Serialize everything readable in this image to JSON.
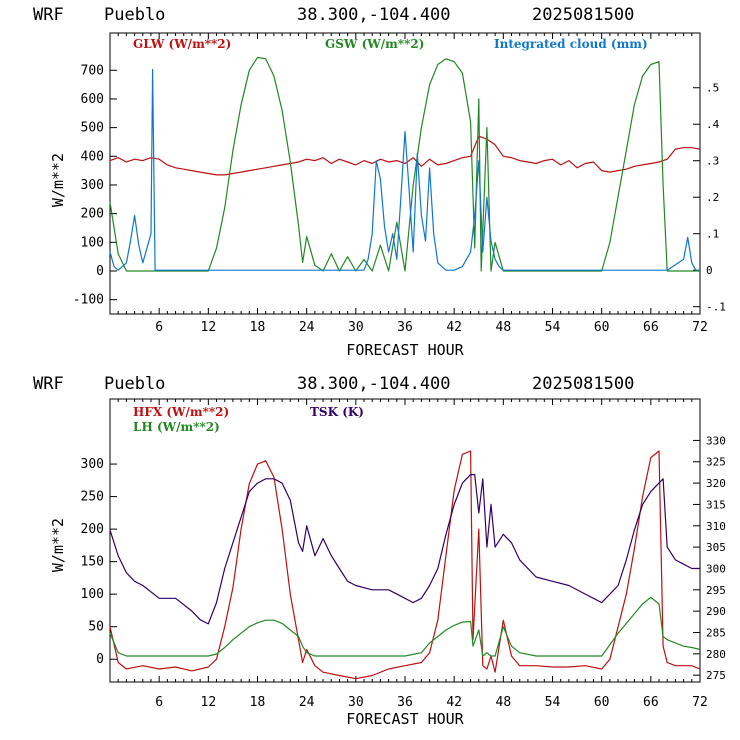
{
  "chart_data": [
    {
      "type": "line",
      "header": {
        "model": "WRF",
        "site": "Pueblo",
        "coords": "38.300,-104.400",
        "run": "2025081500"
      },
      "xlabel": "FORECAST HOUR",
      "ylabel": "W/m**2",
      "xlim": [
        0,
        72
      ],
      "ylim": [
        -150,
        830
      ],
      "y2lim": [
        -0.12,
        0.65
      ],
      "x_ticks": [
        6,
        12,
        18,
        24,
        30,
        36,
        42,
        48,
        54,
        60,
        66,
        72
      ],
      "y_ticks": [
        -100,
        0,
        100,
        200,
        300,
        400,
        500,
        600,
        700
      ],
      "y2_ticks": [
        {
          "v": -0.1,
          "label": "-.1"
        },
        {
          "v": 0,
          "label": "0"
        },
        {
          "v": 0.1,
          "label": ".1"
        },
        {
          "v": 0.2,
          "label": ".2"
        },
        {
          "v": 0.3,
          "label": ".3"
        },
        {
          "v": 0.4,
          "label": ".4"
        },
        {
          "v": 0.5,
          "label": ".5"
        }
      ],
      "series": [
        {
          "name": "GLW (W/m**2)",
          "color": "#bb1111",
          "axis": "left",
          "legend_pos": "left",
          "x": [
            0,
            1,
            2,
            3,
            4,
            5,
            6,
            7,
            8,
            9,
            10,
            11,
            12,
            13,
            14,
            15,
            16,
            17,
            18,
            19,
            20,
            21,
            22,
            23,
            24,
            25,
            26,
            27,
            28,
            29,
            30,
            31,
            32,
            33,
            34,
            35,
            36,
            37,
            38,
            39,
            40,
            41,
            42,
            43,
            44,
            45,
            46,
            47,
            48,
            49,
            50,
            51,
            52,
            53,
            54,
            55,
            56,
            57,
            58,
            59,
            60,
            61,
            62,
            63,
            64,
            65,
            66,
            67,
            68,
            69,
            70,
            71,
            72
          ],
          "values": [
            385,
            395,
            380,
            390,
            385,
            395,
            390,
            370,
            360,
            355,
            350,
            345,
            340,
            335,
            335,
            340,
            345,
            350,
            355,
            360,
            365,
            370,
            375,
            380,
            390,
            385,
            395,
            375,
            390,
            380,
            370,
            385,
            375,
            390,
            380,
            385,
            375,
            395,
            365,
            390,
            370,
            375,
            385,
            395,
            400,
            470,
            460,
            440,
            400,
            395,
            385,
            380,
            375,
            385,
            390,
            370,
            385,
            360,
            375,
            380,
            350,
            345,
            350,
            355,
            365,
            370,
            375,
            380,
            390,
            425,
            430,
            430,
            425
          ]
        },
        {
          "name": "GSW (W/m**2)",
          "color": "#228822",
          "axis": "left",
          "legend_pos": "center",
          "x": [
            0,
            0.5,
            1,
            2,
            3,
            4,
            5,
            6,
            7,
            8,
            9,
            10,
            11,
            12,
            13,
            14,
            15,
            16,
            17,
            18,
            19,
            20,
            21,
            22,
            23,
            23.5,
            24,
            25,
            26,
            27,
            28,
            29,
            30,
            31,
            32,
            33,
            34,
            35,
            36,
            37,
            38,
            39,
            40,
            41,
            42,
            43,
            44,
            44.5,
            45,
            45.3,
            46,
            46.5,
            47,
            48,
            49,
            49.5,
            50,
            51,
            52,
            54,
            56,
            58,
            60,
            61,
            62,
            63,
            64,
            65,
            66,
            67,
            67.5,
            68,
            69,
            70,
            71,
            72
          ],
          "values": [
            240,
            150,
            60,
            0,
            0,
            0,
            0,
            0,
            0,
            0,
            0,
            0,
            0,
            0,
            80,
            220,
            420,
            580,
            700,
            745,
            740,
            680,
            560,
            380,
            160,
            30,
            120,
            20,
            0,
            60,
            0,
            50,
            0,
            40,
            0,
            90,
            0,
            170,
            0,
            300,
            500,
            650,
            720,
            740,
            730,
            690,
            520,
            80,
            600,
            0,
            500,
            0,
            100,
            0,
            0,
            0,
            0,
            0,
            0,
            0,
            0,
            0,
            0,
            100,
            260,
            420,
            580,
            680,
            720,
            730,
            300,
            0,
            0,
            0,
            0,
            0
          ]
        },
        {
          "name": "Integrated cloud (mm)",
          "color": "#1177cc",
          "axis": "right",
          "legend_pos": "right",
          "x": [
            0,
            0.5,
            1,
            2,
            2.5,
            3,
            3.5,
            4,
            4.5,
            5,
            5.2,
            5.5,
            6,
            6.5,
            7,
            8,
            9,
            10,
            11,
            12,
            13,
            14,
            15,
            16,
            17,
            18,
            20,
            22,
            24,
            25,
            26,
            27,
            28,
            29,
            30,
            31,
            31.5,
            32,
            32.5,
            33,
            33.5,
            34,
            34.5,
            35,
            35.5,
            36,
            36.5,
            37,
            37.5,
            38,
            38.5,
            39,
            39.5,
            40,
            41,
            42,
            43,
            44,
            44.5,
            45,
            45.5,
            46,
            46.5,
            47,
            47.5,
            48,
            49,
            50,
            52,
            56,
            60,
            64,
            68,
            70,
            70.5,
            71,
            71.5,
            72
          ],
          "values": [
            0.05,
            0.01,
            0.0,
            0.02,
            0.08,
            0.15,
            0.07,
            0.02,
            0.06,
            0.1,
            0.55,
            0.0,
            0.0,
            0.0,
            0.0,
            0.0,
            0.0,
            0.0,
            0.0,
            0.0,
            0.0,
            0.0,
            0.0,
            0.0,
            0.0,
            0.0,
            0.0,
            0.0,
            0.0,
            0.0,
            0.0,
            0.0,
            0.0,
            0.0,
            0.0,
            0.0,
            0.03,
            0.1,
            0.3,
            0.25,
            0.12,
            0.05,
            0.1,
            0.03,
            0.2,
            0.38,
            0.22,
            0.05,
            0.32,
            0.15,
            0.08,
            0.28,
            0.1,
            0.02,
            0.0,
            0.0,
            0.01,
            0.05,
            0.15,
            0.3,
            0.05,
            0.2,
            0.08,
            0.03,
            0.01,
            0.0,
            0.0,
            0.0,
            0.0,
            0.0,
            0.0,
            0.0,
            0.0,
            0.03,
            0.09,
            0.02,
            0.0,
            0.0
          ]
        }
      ]
    },
    {
      "type": "line",
      "header": {
        "model": "WRF",
        "site": "Pueblo",
        "coords": "38.300,-104.400",
        "run": "2025081500"
      },
      "xlabel": "FORECAST HOUR",
      "ylabel": "W/m**2",
      "xlim": [
        0,
        72
      ],
      "ylim": [
        -35,
        400
      ],
      "y2lim": [
        273.4,
        339.7
      ],
      "x_ticks": [
        6,
        12,
        18,
        24,
        30,
        36,
        42,
        48,
        54,
        60,
        66,
        72
      ],
      "y_ticks": [
        0,
        50,
        100,
        150,
        200,
        250,
        300
      ],
      "y2_ticks": [
        {
          "v": 275,
          "label": "275"
        },
        {
          "v": 280,
          "label": "280"
        },
        {
          "v": 285,
          "label": "285"
        },
        {
          "v": 290,
          "label": "290"
        },
        {
          "v": 295,
          "label": "295"
        },
        {
          "v": 300,
          "label": "300"
        },
        {
          "v": 305,
          "label": "305"
        },
        {
          "v": 310,
          "label": "310"
        },
        {
          "v": 315,
          "label": "315"
        },
        {
          "v": 320,
          "label": "320"
        },
        {
          "v": 325,
          "label": "325"
        },
        {
          "v": 330,
          "label": "330"
        }
      ],
      "series": [
        {
          "name": "HFX (W/m**2)",
          "color": "#bb1111",
          "axis": "left",
          "legend_pos": "left",
          "x": [
            0,
            1,
            2,
            4,
            6,
            8,
            10,
            12,
            13,
            14,
            15,
            16,
            17,
            18,
            19,
            20,
            21,
            22,
            23,
            23.5,
            24,
            25,
            26,
            28,
            30,
            32,
            34,
            36,
            38,
            39,
            40,
            41,
            42,
            43,
            44,
            44.3,
            45,
            45.5,
            46,
            46.5,
            47,
            48,
            49,
            50,
            52,
            54,
            56,
            58,
            60,
            61,
            62,
            63,
            64,
            65,
            66,
            67,
            67.5,
            68,
            69,
            70,
            71,
            72
          ],
          "values": [
            50,
            -5,
            -15,
            -10,
            -15,
            -12,
            -18,
            -12,
            0,
            50,
            110,
            200,
            270,
            300,
            305,
            280,
            200,
            100,
            30,
            -5,
            15,
            -10,
            -20,
            -25,
            -30,
            -25,
            -15,
            -10,
            -5,
            10,
            60,
            160,
            260,
            315,
            320,
            30,
            200,
            -10,
            -15,
            5,
            -20,
            60,
            5,
            -10,
            -10,
            -12,
            -12,
            -10,
            -15,
            0,
            50,
            100,
            170,
            250,
            310,
            320,
            20,
            -5,
            -10,
            -10,
            -10,
            -15
          ]
        },
        {
          "name": "LH (W/m**2)",
          "color": "#228822",
          "axis": "left",
          "legend_pos": "left2",
          "x": [
            0,
            1,
            2,
            4,
            6,
            8,
            10,
            12,
            13,
            14,
            15,
            16,
            17,
            18,
            19,
            20,
            21,
            22,
            23,
            23.5,
            24,
            25,
            26,
            28,
            30,
            32,
            34,
            36,
            38,
            39,
            40,
            41,
            42,
            43,
            44,
            44.3,
            45,
            45.5,
            46,
            46.5,
            47,
            48,
            49,
            50,
            52,
            54,
            56,
            58,
            60,
            62,
            64,
            65,
            66,
            67,
            67.5,
            68,
            69,
            70,
            71,
            72
          ],
          "values": [
            40,
            10,
            5,
            5,
            5,
            5,
            5,
            5,
            8,
            18,
            30,
            40,
            50,
            56,
            60,
            60,
            55,
            45,
            35,
            20,
            10,
            5,
            5,
            5,
            5,
            5,
            5,
            5,
            10,
            25,
            35,
            45,
            52,
            57,
            58,
            20,
            45,
            5,
            10,
            5,
            5,
            50,
            20,
            10,
            5,
            5,
            5,
            5,
            5,
            40,
            70,
            85,
            95,
            85,
            35,
            30,
            25,
            20,
            18,
            15
          ]
        },
        {
          "name": "TSK (K)",
          "color": "#330066",
          "axis": "right",
          "legend_pos": "center",
          "x": [
            0,
            1,
            2,
            3,
            4,
            6,
            8,
            10,
            11,
            12,
            13,
            14,
            15,
            16,
            17,
            18,
            19,
            20,
            21,
            22,
            23,
            23.5,
            24,
            25,
            26,
            27,
            28,
            29,
            30,
            32,
            34,
            36,
            37,
            38,
            39,
            40,
            41,
            42,
            43,
            44,
            44.5,
            45,
            45.5,
            46,
            46.5,
            47,
            48,
            49,
            50,
            52,
            54,
            56,
            58,
            59,
            60,
            61,
            62,
            63,
            64,
            65,
            66,
            67,
            67.5,
            68,
            69,
            70,
            71,
            72
          ],
          "values": [
            309,
            303,
            299,
            297,
            296,
            293,
            293,
            290,
            288,
            287,
            292,
            300,
            306,
            312,
            318,
            320,
            321,
            321,
            320,
            316,
            306,
            304,
            310,
            303,
            307,
            303,
            300,
            297,
            296,
            295,
            295,
            293,
            292,
            293,
            296,
            300,
            308,
            315,
            320,
            322,
            322,
            313,
            321,
            305,
            315,
            305,
            308,
            306,
            302,
            298,
            297,
            296,
            294,
            293,
            292,
            294,
            296,
            302,
            309,
            315,
            318,
            320,
            321,
            305,
            302,
            301,
            300,
            300
          ]
        }
      ]
    }
  ]
}
